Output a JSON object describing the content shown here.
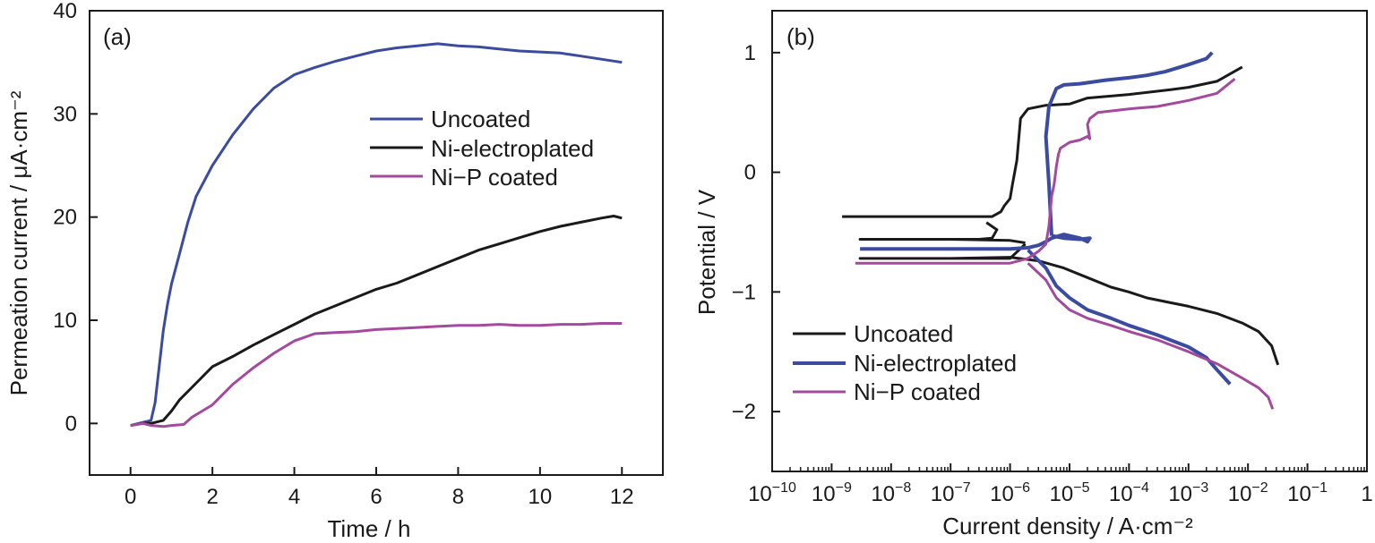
{
  "chart_data": [
    {
      "panel": "(a)",
      "type": "line",
      "xlabel": "Time / h",
      "ylabel": "Permeation current / μA·cm⁻²",
      "xlim": [
        -1,
        13
      ],
      "ylim": [
        -5,
        40
      ],
      "xticks": [
        "0",
        "2",
        "4",
        "6",
        "8",
        "10",
        "12"
      ],
      "yticks": [
        "0",
        "10",
        "20",
        "30",
        "40"
      ],
      "legend": "upper-right",
      "grid": false,
      "series": [
        {
          "name": "Uncoated",
          "color": "#3b4ba0",
          "x": [
            0,
            0.3,
            0.5,
            0.6,
            0.7,
            0.8,
            0.9,
            1.0,
            1.2,
            1.4,
            1.6,
            2.0,
            2.5,
            3.0,
            3.5,
            4.0,
            4.5,
            5.0,
            5.5,
            6.0,
            6.5,
            7.0,
            7.5,
            8.0,
            8.5,
            9.0,
            9.5,
            10.0,
            10.5,
            11.0,
            11.5,
            12.0
          ],
          "y": [
            -0.2,
            0.1,
            0.3,
            2.0,
            5.5,
            9.0,
            11.5,
            13.5,
            16.5,
            19.5,
            22.0,
            25.0,
            28.0,
            30.5,
            32.5,
            33.8,
            34.5,
            35.1,
            35.6,
            36.1,
            36.4,
            36.6,
            36.8,
            36.6,
            36.5,
            36.3,
            36.1,
            36.0,
            35.9,
            35.6,
            35.3,
            35.0
          ]
        },
        {
          "name": "Ni-electroplated",
          "color": "#1a1a1a",
          "x": [
            0,
            0.3,
            0.5,
            0.8,
            1.0,
            1.2,
            1.5,
            2.0,
            2.5,
            3.0,
            3.5,
            4.0,
            4.5,
            5.0,
            5.5,
            6.0,
            6.5,
            7.0,
            7.5,
            8.0,
            8.5,
            9.0,
            9.5,
            10.0,
            10.5,
            11.0,
            11.5,
            11.8,
            12.0
          ],
          "y": [
            -0.2,
            0.0,
            0.0,
            0.3,
            1.2,
            2.3,
            3.5,
            5.5,
            6.5,
            7.6,
            8.6,
            9.6,
            10.6,
            11.4,
            12.2,
            13.0,
            13.6,
            14.4,
            15.2,
            16.0,
            16.8,
            17.4,
            18.0,
            18.6,
            19.1,
            19.5,
            19.9,
            20.1,
            19.9
          ]
        },
        {
          "name": "Ni−P coated",
          "color": "#a34a9c",
          "x": [
            0,
            0.3,
            0.5,
            0.8,
            1.0,
            1.3,
            1.5,
            2.0,
            2.5,
            3.0,
            3.5,
            4.0,
            4.5,
            5.0,
            5.5,
            6.0,
            6.5,
            7.0,
            7.5,
            8.0,
            8.5,
            9.0,
            9.5,
            10.0,
            10.5,
            11.0,
            11.5,
            12.0
          ],
          "y": [
            -0.2,
            0.0,
            -0.2,
            -0.3,
            -0.2,
            -0.1,
            0.6,
            1.8,
            3.8,
            5.4,
            6.8,
            8.0,
            8.7,
            8.8,
            8.9,
            9.1,
            9.2,
            9.3,
            9.4,
            9.5,
            9.5,
            9.6,
            9.5,
            9.5,
            9.6,
            9.6,
            9.7,
            9.7
          ]
        }
      ]
    },
    {
      "panel": "(b)",
      "type": "line",
      "xlabel": "Current density / A·cm⁻²",
      "ylabel": "Potential / V",
      "xscale": "log",
      "xlim": [
        "1e-10",
        "1"
      ],
      "ylim": [
        -2.5,
        1.35
      ],
      "xticks": [
        {
          "base": "10",
          "exp": "−10"
        },
        {
          "base": "10",
          "exp": "−9"
        },
        {
          "base": "10",
          "exp": "−8"
        },
        {
          "base": "10",
          "exp": "−7"
        },
        {
          "base": "10",
          "exp": "−6"
        },
        {
          "base": "10",
          "exp": "−5"
        },
        {
          "base": "10",
          "exp": "−4"
        },
        {
          "base": "10",
          "exp": "−3"
        },
        {
          "base": "10",
          "exp": "−2"
        },
        {
          "base": "10",
          "exp": "−1"
        },
        {
          "base": "1",
          "exp": ""
        }
      ],
      "yticks": [
        "1",
        "0",
        "−1",
        "−2"
      ],
      "legend": "lower-left",
      "grid": false,
      "series": [
        {
          "name": "Uncoated",
          "color": "#1a1a1a",
          "x": [
            "1.5e-9",
            "3e-8",
            "3e-7",
            "5e-7",
            "7e-7",
            "8e-7",
            "1e-6",
            "1.1e-6",
            "1.3e-6",
            "1.4e-6",
            "1.5e-6",
            "2e-6",
            "4e-6",
            "1e-5",
            "2e-5",
            "1e-4",
            "5e-4",
            "1e-3",
            "3e-3",
            "8e-3"
          ],
          "y": [
            -0.37,
            -0.37,
            -0.37,
            -0.37,
            -0.33,
            -0.28,
            -0.22,
            -0.1,
            0.1,
            0.28,
            0.45,
            0.53,
            0.56,
            0.57,
            0.62,
            0.65,
            0.69,
            0.71,
            0.76,
            0.88
          ]
        },
        {
          "name": "Uncoated",
          "color": "#1a1a1a",
          "x": [
            "4e-7",
            "6e-7",
            "5e-7",
            "3e-7",
            "1e-7",
            "1e-8",
            "3e-9",
            "1e-7",
            "1e-6",
            "1.8e-6"
          ],
          "y": [
            -0.42,
            -0.48,
            -0.55,
            -0.56,
            -0.56,
            -0.56,
            -0.56,
            -0.56,
            -0.57,
            -0.59
          ]
        },
        {
          "name": "Uncoated",
          "color": "#1a1a1a",
          "x": [
            "1.8e-6",
            "1e-6",
            "1e-7",
            "3e-9",
            "1e-7",
            "1e-6",
            "3e-6",
            "8e-6",
            "2e-5",
            "5e-5",
            "1e-4",
            "2e-4",
            "5e-4",
            "1e-3",
            "3e-3",
            "8e-3",
            "1.5e-2",
            "2.5e-2",
            "3.2e-2"
          ],
          "y": [
            -0.6,
            -0.72,
            -0.72,
            -0.72,
            -0.72,
            -0.71,
            -0.74,
            -0.8,
            -0.88,
            -0.96,
            -1.0,
            -1.05,
            -1.09,
            -1.12,
            -1.18,
            -1.26,
            -1.33,
            -1.45,
            -1.61
          ]
        },
        {
          "name": "Ni-electroplated",
          "color": "#3b4ba0",
          "x": [
            "3e-9",
            "3e-8",
            "3e-7",
            "1e-6",
            "2e-6",
            "3e-6",
            "4e-6",
            "5e-6",
            "8e-6",
            "1.5e-5",
            "2e-5",
            "2.2e-5",
            "1.5e-5",
            "8e-6",
            "5e-6"
          ],
          "y": [
            -0.64,
            -0.64,
            -0.64,
            -0.64,
            -0.63,
            -0.61,
            -0.58,
            -0.55,
            -0.52,
            -0.55,
            -0.58,
            -0.55,
            -0.56,
            -0.55,
            -0.53
          ]
        },
        {
          "name": "Ni-electroplated",
          "color": "#3b4ba0",
          "x": [
            "5e-6",
            "4.5e-6",
            "4e-6",
            "4.5e-6",
            "6e-6",
            "8e-6",
            "1.5e-5",
            "4e-5",
            "1e-4",
            "2e-4",
            "4e-4",
            "1e-3",
            "2e-3",
            "2.5e-3"
          ],
          "y": [
            -0.53,
            -0.1,
            0.3,
            0.55,
            0.7,
            0.73,
            0.74,
            0.77,
            0.79,
            0.81,
            0.84,
            0.9,
            0.95,
            1.0
          ]
        },
        {
          "name": "Ni-electroplated",
          "color": "#3b4ba0",
          "x": [
            "2e-6",
            "4e-6",
            "6e-6",
            "1e-5",
            "2e-5",
            "5e-5",
            "1e-4",
            "3e-4",
            "1e-3",
            "2e-3",
            "3e-3",
            "5e-3"
          ],
          "y": [
            -0.65,
            -0.8,
            -0.95,
            -1.05,
            -1.15,
            -1.22,
            -1.28,
            -1.36,
            -1.46,
            -1.55,
            -1.65,
            -1.77
          ]
        },
        {
          "name": "Ni−P coated",
          "color": "#a34a9c",
          "x": [
            "2.5e-9",
            "3e-8",
            "3e-7",
            "1e-6",
            "2e-6",
            "3e-6",
            "4e-6",
            "4.5e-6",
            "5e-6",
            "5.5e-6",
            "6e-6",
            "6.5e-6",
            "7e-6",
            "8e-6",
            "1e-5",
            "1.5e-5",
            "2e-5",
            "2.2e-5",
            "2e-5",
            "2.2e-5",
            "3e-5",
            "1e-4",
            "3e-4",
            "1e-3",
            "3e-3",
            "6e-3"
          ],
          "y": [
            -0.76,
            -0.76,
            -0.76,
            -0.76,
            -0.72,
            -0.66,
            -0.6,
            -0.45,
            -0.2,
            -0.1,
            0.05,
            0.15,
            0.2,
            0.22,
            0.25,
            0.27,
            0.3,
            0.28,
            0.4,
            0.45,
            0.5,
            0.53,
            0.55,
            0.6,
            0.66,
            0.78
          ]
        },
        {
          "name": "Ni−P coated",
          "color": "#a34a9c",
          "x": [
            "2e-6",
            "4e-6",
            "6e-6",
            "1e-5",
            "2e-5",
            "5e-5",
            "1e-4",
            "3e-4",
            "1e-3",
            "3e-3",
            "8e-3",
            "1.5e-2",
            "2.2e-2",
            "2.6e-2"
          ],
          "y": [
            -0.76,
            -0.9,
            -1.05,
            -1.15,
            -1.22,
            -1.28,
            -1.33,
            -1.4,
            -1.5,
            -1.6,
            -1.72,
            -1.8,
            -1.88,
            -1.98
          ]
        }
      ]
    }
  ]
}
